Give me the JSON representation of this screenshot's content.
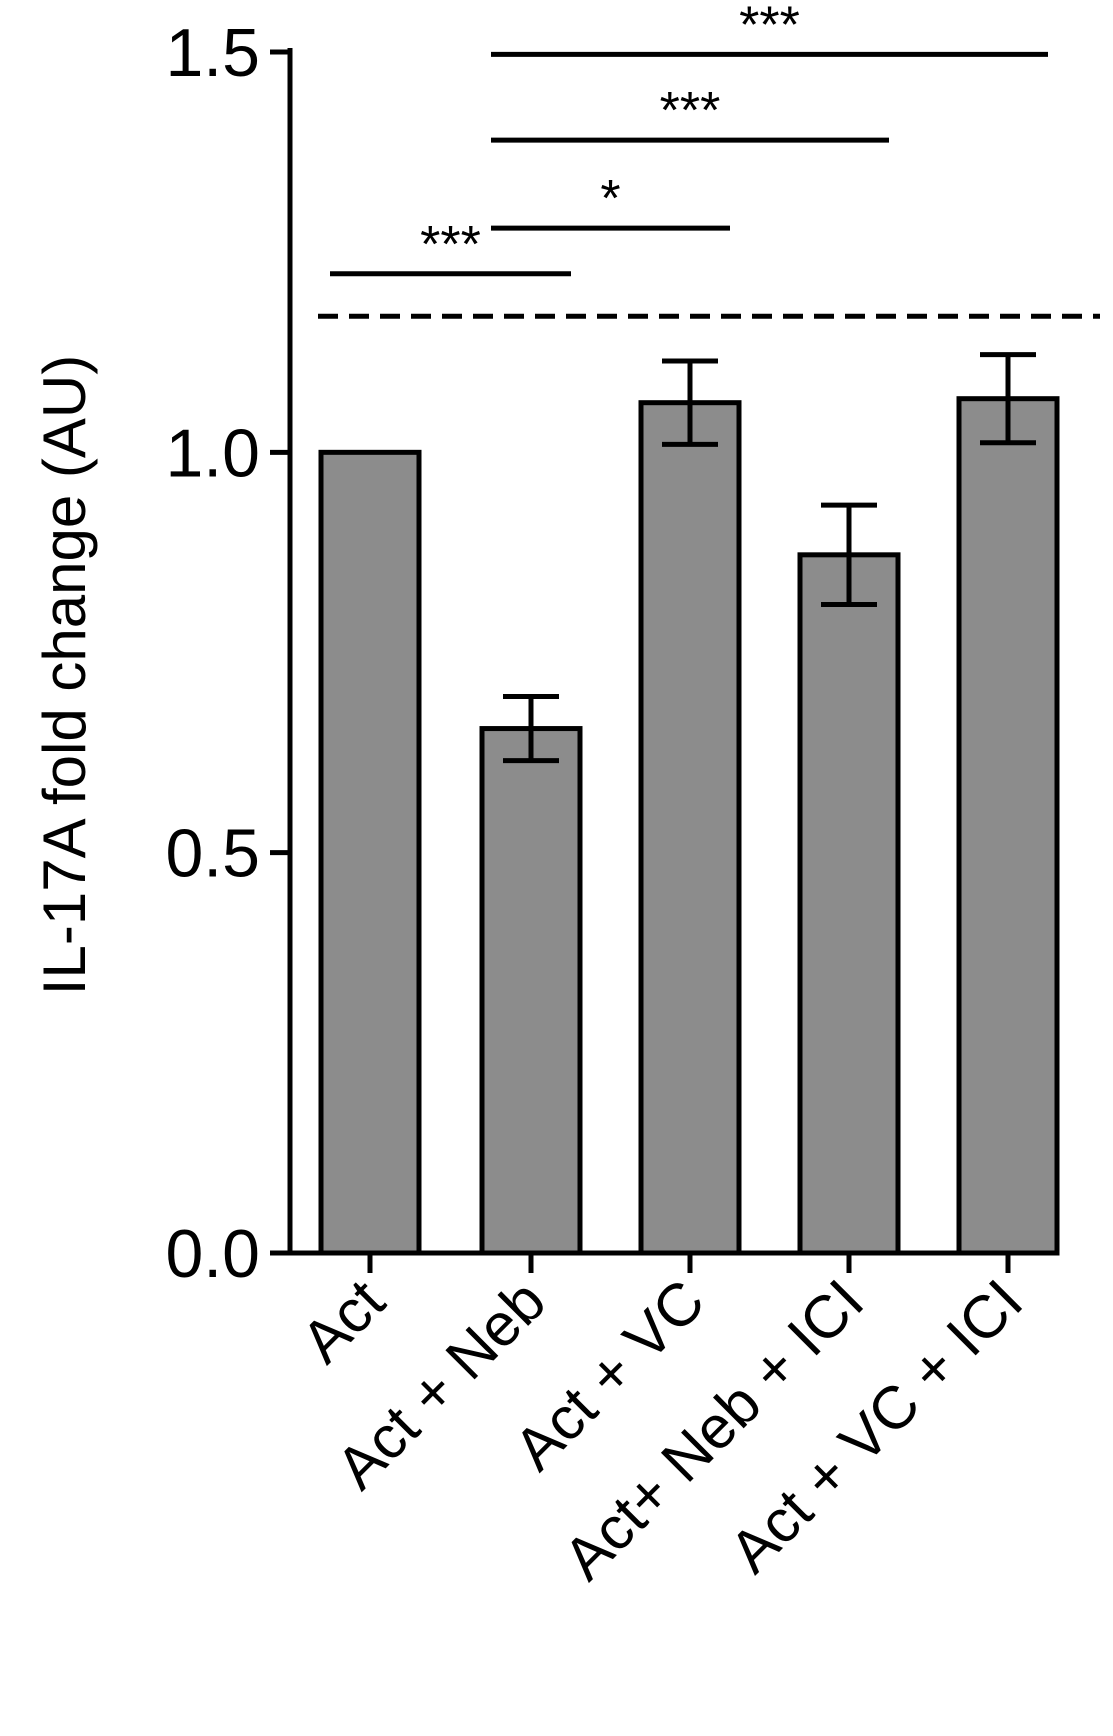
{
  "chart_data": {
    "type": "bar",
    "title": "",
    "ylabel": "IL-17A fold change (AU)",
    "xlabel": "",
    "ylim": [
      0,
      1.5
    ],
    "yticks": [
      0.0,
      0.5,
      1.0,
      1.5
    ],
    "ytick_labels": [
      "0.0",
      "0.5",
      "1.0",
      "1.5"
    ],
    "categories": [
      "Act",
      "Act + Neb",
      "Act + VC",
      "Act+ Neb + ICI",
      "Act + VC + ICI"
    ],
    "values": [
      1.0,
      0.655,
      1.062,
      0.872,
      1.067
    ],
    "error": [
      0,
      0.04,
      0.052,
      0.062,
      0.055
    ],
    "bar_color": "#8c8c8c",
    "reference_line": 1.17,
    "significance": [
      {
        "from": 0,
        "to": 1,
        "label": "***",
        "y": 1.223
      },
      {
        "from": 1,
        "to": 2,
        "label": "*",
        "y": 1.28
      },
      {
        "from": 1,
        "to": 3,
        "label": "***",
        "y": 1.39
      },
      {
        "from": 1,
        "to": 4,
        "label": "***",
        "y": 1.497
      }
    ]
  }
}
